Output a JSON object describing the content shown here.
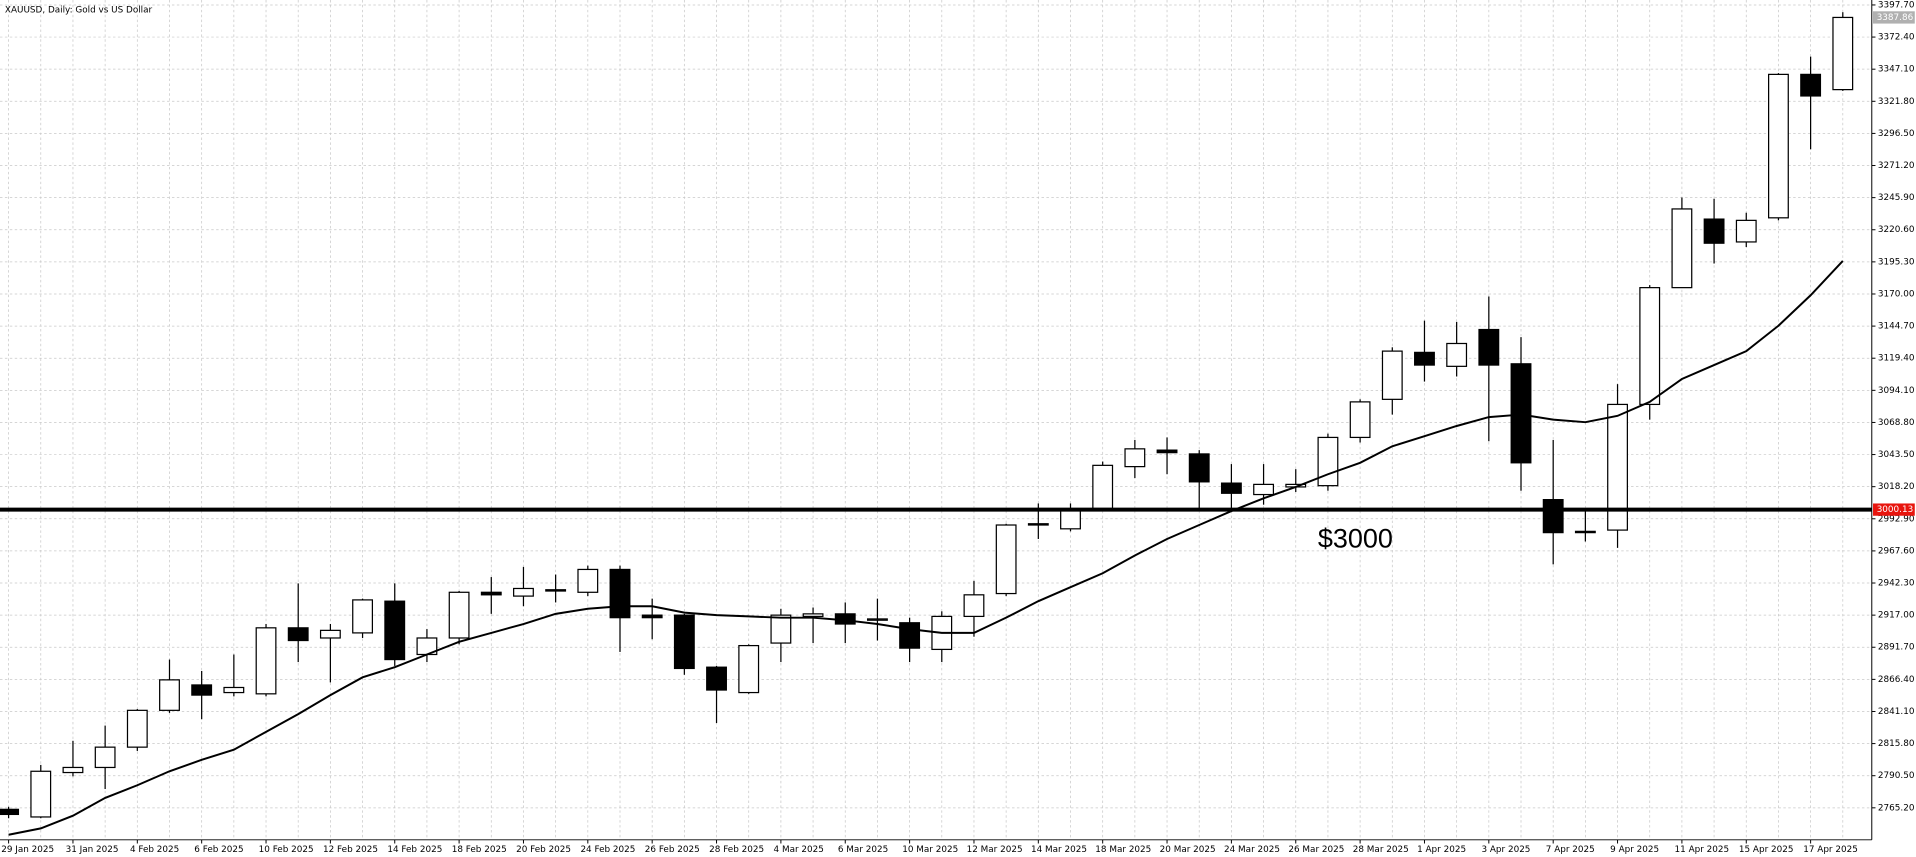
{
  "chart_data": {
    "type": "candlestick",
    "title": "XAUUSD, Daily:  Gold vs US Dollar",
    "annotation": "$3000",
    "categories": [
      "29 Jan 2025",
      null,
      "31 Jan 2025",
      null,
      "4 Feb 2025",
      null,
      "6 Feb 2025",
      null,
      "10 Feb 2025",
      null,
      "12 Feb 2025",
      null,
      "14 Feb 2025",
      null,
      "18 Feb 2025",
      null,
      "20 Feb 2025",
      null,
      "24 Feb 2025",
      null,
      "26 Feb 2025",
      null,
      "28 Feb 2025",
      null,
      "4 Mar 2025",
      null,
      "6 Mar 2025",
      null,
      "10 Mar 2025",
      null,
      "12 Mar 2025",
      null,
      "14 Mar 2025",
      null,
      "18 Mar 2025",
      null,
      "20 Mar 2025",
      null,
      "24 Mar 2025",
      null,
      "26 Mar 2025",
      null,
      "28 Mar 2025",
      null,
      "1 Apr 2025",
      null,
      "3 Apr 2025",
      null,
      "7 Apr 2025",
      null,
      "9 Apr 2025",
      null,
      "11 Apr 2025",
      null,
      "15 Apr 2025",
      null,
      "17 Apr 2025",
      null
    ],
    "open": [
      2764,
      2758,
      2793,
      2797,
      2813,
      2842,
      2862,
      2856,
      2855,
      2907,
      2899,
      2903,
      2928,
      2886,
      2899,
      2935,
      2932,
      2937,
      2935,
      2953,
      2917,
      2917,
      2876,
      2856,
      2895,
      2916,
      2918,
      2913,
      2911,
      2890,
      2916,
      2934,
      2989,
      2985,
      3001,
      3034,
      3047,
      3044,
      3021,
      3012,
      3018,
      3019,
      3057,
      3087,
      3124,
      3113,
      3142,
      3115,
      3008,
      2983,
      2984,
      3083,
      3175,
      3229,
      3211,
      3230,
      3343,
      3331
    ],
    "high": [
      2766,
      2799,
      2818,
      2830,
      2843,
      2882,
      2873,
      2886,
      2910,
      2942,
      2910,
      2930,
      2942,
      2906,
      2936,
      2947,
      2955,
      2949,
      2956,
      2956,
      2930,
      2918,
      2877,
      2894,
      2922,
      2923,
      2927,
      2930,
      2915,
      2920,
      2944,
      2989,
      3005,
      3005,
      3038,
      3055,
      3057,
      3047,
      3036,
      3036,
      3032,
      3060,
      3087,
      3128,
      3149,
      3148,
      3168,
      3136,
      3055,
      3000,
      3099,
      3177,
      3246,
      3245,
      3234,
      3344,
      3357,
      3392
    ],
    "low": [
      2757,
      2757,
      2790,
      2780,
      2810,
      2840,
      2835,
      2853,
      2853,
      2880,
      2864,
      2899,
      2877,
      2880,
      2894,
      2918,
      2924,
      2927,
      2932,
      2888,
      2898,
      2870,
      2832,
      2855,
      2880,
      2895,
      2895,
      2897,
      2880,
      2880,
      2900,
      2932,
      2977,
      2983,
      2999,
      3025,
      3028,
      2999,
      3001,
      3004,
      3014,
      3015,
      3053,
      3075,
      3101,
      3105,
      3054,
      3015,
      2957,
      2975,
      2970,
      3071,
      3175,
      3194,
      3207,
      3228,
      3284,
      3330
    ],
    "close": [
      2760,
      2794,
      2797,
      2813,
      2842,
      2866,
      2854,
      2860,
      2907,
      2897,
      2905,
      2929,
      2882,
      2899,
      2935,
      2933,
      2938,
      2936,
      2953,
      2915,
      2915,
      2875,
      2858,
      2893,
      2917,
      2918,
      2910,
      2914,
      2891,
      2916,
      2933,
      2988,
      2988,
      3000,
      3035,
      3048,
      3045,
      3022,
      3013,
      3020,
      3020,
      3057,
      3085,
      3125,
      3114,
      3131,
      3114,
      3037,
      2982,
      2982,
      3083,
      3175,
      3237,
      3210,
      3228,
      3343,
      3326,
      3387.86
    ],
    "moving_average": [
      2744,
      2749,
      2759,
      2773,
      2783,
      2794,
      2803,
      2811,
      2825,
      2839,
      2854,
      2868,
      2876,
      2886,
      2896,
      2903,
      2910,
      2918,
      2922,
      2924,
      2924,
      2919,
      2917,
      2916,
      2915,
      2915,
      2913,
      2910,
      2906,
      2903,
      2903,
      2915,
      2928,
      2939,
      2950,
      2964,
      2977,
      2988,
      2999,
      3009,
      3018,
      3028,
      3037,
      3050,
      3058,
      3066,
      3073,
      3075,
      3071,
      3069,
      3074,
      3085,
      3103,
      3114,
      3125,
      3145,
      3169,
      3196
    ],
    "up_color": "#ffffff",
    "down_color": "#000000",
    "line_color": "#000000",
    "level": 3000.13,
    "level_color": "#e8150e",
    "current_price": 3387.86,
    "current_price_color": "#b0b0b0",
    "grid": true,
    "ylim": [
      2740,
      3401.6
    ],
    "yticks": [
      {
        "value": 3397.7,
        "label": "3397.70"
      },
      {
        "value": 3372.4,
        "label": "3372.40"
      },
      {
        "value": 3347.1,
        "label": "3347.10"
      },
      {
        "value": 3321.8,
        "label": "3321.80"
      },
      {
        "value": 3296.5,
        "label": "3296.50"
      },
      {
        "value": 3271.2,
        "label": "3271.20"
      },
      {
        "value": 3245.9,
        "label": "3245.90"
      },
      {
        "value": 3220.6,
        "label": "3220.60"
      },
      {
        "value": 3195.3,
        "label": "3195.30"
      },
      {
        "value": 3170,
        "label": "3170.00"
      },
      {
        "value": 3144.7,
        "label": "3144.70"
      },
      {
        "value": 3119.4,
        "label": "3119.40"
      },
      {
        "value": 3094.1,
        "label": "3094.10"
      },
      {
        "value": 3068.8,
        "label": "3068.80"
      },
      {
        "value": 3043.5,
        "label": "3043.50"
      },
      {
        "value": 3018.2,
        "label": "3018.20"
      },
      {
        "value": 2992.9,
        "label": "2992.90"
      },
      {
        "value": 2967.6,
        "label": "2967.60"
      },
      {
        "value": 2942.3,
        "label": "2942.30"
      },
      {
        "value": 2917,
        "label": "2917.00"
      },
      {
        "value": 2891.7,
        "label": "2891.70"
      },
      {
        "value": 2866.4,
        "label": "2866.40"
      },
      {
        "value": 2841.1,
        "label": "2841.10"
      },
      {
        "value": 2815.8,
        "label": "2815.80"
      },
      {
        "value": 2790.5,
        "label": "2790.50"
      },
      {
        "value": 2765.2,
        "label": "2765.20"
      }
    ]
  }
}
